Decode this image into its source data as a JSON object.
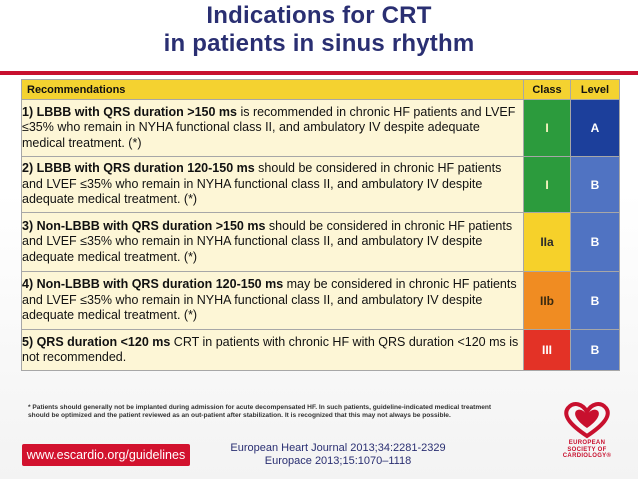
{
  "title": {
    "line1": "Indications for CRT",
    "line2": "in patients in sinus rhythm"
  },
  "table": {
    "headers": {
      "recommendations": "Recommendations",
      "class": "Class",
      "level": "Level"
    },
    "rows": [
      {
        "bold": "1) LBBB with QRS duration >150 ms",
        "text": " is recommended in chronic HF patients and LVEF ≤35% who remain in NYHA functional class II, and ambulatory IV despite adequate medical treatment. (*)",
        "class": "I",
        "level": "A",
        "class_color": "#2c9b3d",
        "level_color": "#1c3f9b"
      },
      {
        "bold": "2) LBBB with QRS duration 120-150 ms",
        "text": " should be considered  in chronic HF patients and LVEF ≤35% who remain in NYHA functional class II, and ambulatory IV despite adequate medical treatment. (*)",
        "class": "I",
        "level": "B",
        "class_color": "#2c9b3d",
        "level_color": "#5073c2"
      },
      {
        "bold": "3) Non-LBBB with QRS duration >150 ms",
        "text": " should be considered  in chronic HF patients and LVEF ≤35% who remain in NYHA functional class II, and ambulatory IV despite adequate medical treatment. (*)",
        "class": "IIa",
        "level": "B",
        "class_color": "#f6d12a",
        "level_color": "#5073c2"
      },
      {
        "bold": "4) Non-LBBB with QRS duration 120-150 ms",
        "text": " may be considered  in chronic HF patients and LVEF ≤35% who remain in NYHA functional class II, and ambulatory IV despite adequate medical treatment. (*)",
        "class": "IIb",
        "level": "B",
        "class_color": "#f08c22",
        "level_color": "#5073c2"
      },
      {
        "bold": "5) QRS duration <120 ms",
        "text": " CRT in patients with chronic HF with QRS duration <120 ms is not recommended.",
        "class": "III",
        "level": "B",
        "class_color": "#e33226",
        "level_color": "#5073c2"
      }
    ]
  },
  "footnote": "* Patients should generally not be implanted during admission for acute decompensated HF. In such patients, guideline-indicated medical treatment should be optimized and the patient reviewed as an out-patient after stabilization. It is recognized that this may not always be possible.",
  "footer": {
    "url": "www.escardio.org/guidelines",
    "ref1": "European Heart Journal 2013;34:2281-2329",
    "ref2": "Europace 2013;15:1070–1118",
    "logo_text": [
      "EUROPEAN",
      "SOCIETY OF",
      "CARDIOLOGY®"
    ]
  },
  "colors": {
    "title": "#2a2f72",
    "accent_red": "#c8102e",
    "header_yellow": "#f4d230",
    "row_bg": "#fdf6d6"
  }
}
